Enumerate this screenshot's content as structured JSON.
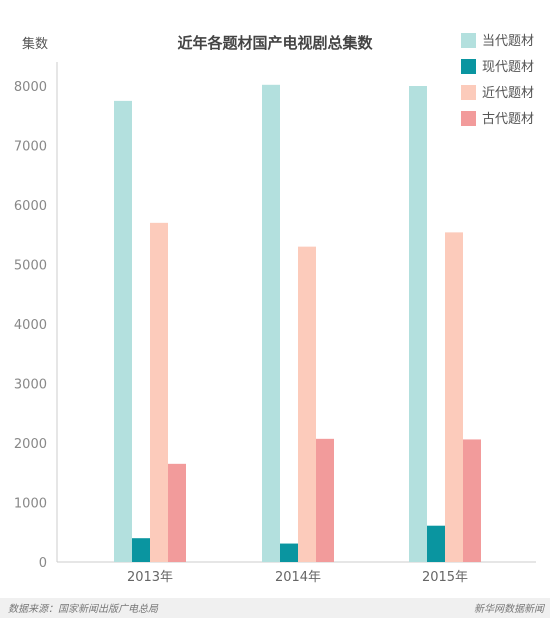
{
  "chart_data": {
    "type": "bar",
    "title": "近年各题材国产电视剧总集数",
    "ylabel": "集数",
    "xlabel": "",
    "categories": [
      "2013年",
      "2014年",
      "2015年"
    ],
    "ylim": [
      0,
      8500
    ],
    "yticks": [
      0,
      1000,
      2000,
      3000,
      4000,
      5000,
      6000,
      7000,
      8000
    ],
    "legend_position": "top-right",
    "grid": false,
    "series": [
      {
        "name": "当代题材",
        "color": "#b3e0de",
        "values": [
          7750,
          8020,
          8000
        ]
      },
      {
        "name": "现代题材",
        "color": "#0a95a0",
        "values": [
          400,
          310,
          610
        ]
      },
      {
        "name": "近代题材",
        "color": "#fccbbb",
        "values": [
          5700,
          5300,
          5540
        ]
      },
      {
        "name": "古代题材",
        "color": "#f29b9b",
        "values": [
          1650,
          2070,
          2060
        ]
      }
    ]
  },
  "footer": {
    "source": "数据来源：国家新闻出版广电总局",
    "brand": "新华网数据新闻"
  }
}
